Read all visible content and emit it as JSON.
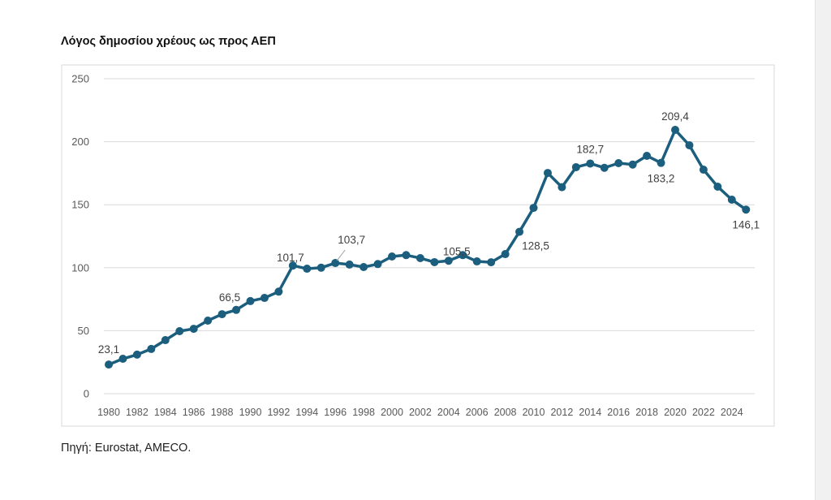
{
  "chart_data": {
    "type": "line",
    "title": "Λόγος δημοσίου χρέους ως προς ΑΕΠ",
    "source": "Πηγή: Eurostat, AMECO.",
    "xlabel": "",
    "ylabel": "",
    "ylim": [
      0,
      250
    ],
    "yticks": [
      "0",
      "50",
      "100",
      "150",
      "200",
      "250"
    ],
    "xticks": [
      "1980",
      "1982",
      "1984",
      "1986",
      "1988",
      "1990",
      "1992",
      "1994",
      "1996",
      "1998",
      "2000",
      "2002",
      "2004",
      "2006",
      "2008",
      "2010",
      "2012",
      "2014",
      "2016",
      "2018",
      "2020",
      "2022",
      "2024"
    ],
    "grid": true,
    "legend": "none",
    "color": "#1b5e7e",
    "x": [
      1980,
      1981,
      1982,
      1983,
      1984,
      1985,
      1986,
      1987,
      1988,
      1989,
      1990,
      1991,
      1992,
      1993,
      1994,
      1995,
      1996,
      1997,
      1998,
      1999,
      2000,
      2001,
      2002,
      2003,
      2004,
      2005,
      2006,
      2007,
      2008,
      2009,
      2010,
      2011,
      2012,
      2013,
      2014,
      2015,
      2016,
      2017,
      2018,
      2019,
      2020,
      2021,
      2022,
      2023,
      2024,
      2025
    ],
    "values": [
      23.1,
      27.7,
      31,
      35.5,
      42.5,
      49.6,
      51.5,
      58,
      63.1,
      66.5,
      73.5,
      76,
      81,
      101.7,
      99.2,
      100,
      103.7,
      102.5,
      100.5,
      102.9,
      108.9,
      110,
      107.6,
      104.4,
      105.5,
      110,
      105,
      104.3,
      110.8,
      128.5,
      147.5,
      175.2,
      163.9,
      179.8,
      182.7,
      179.3,
      183,
      181.9,
      188.8,
      183.2,
      209.4,
      197.2,
      177.8,
      164.3,
      154,
      146.1
    ],
    "data_labels": [
      {
        "year": 1980,
        "text": "23,1"
      },
      {
        "year": 1989,
        "text": "66,5"
      },
      {
        "year": 1993,
        "text": "101,7"
      },
      {
        "year": 1996,
        "text": "103,7"
      },
      {
        "year": 2004,
        "text": "105,5"
      },
      {
        "year": 2009,
        "text": "128,5"
      },
      {
        "year": 2014,
        "text": "182,7"
      },
      {
        "year": 2019,
        "text": "183,2"
      },
      {
        "year": 2020,
        "text": "209,4"
      },
      {
        "year": 2025,
        "text": "146,1"
      }
    ]
  }
}
